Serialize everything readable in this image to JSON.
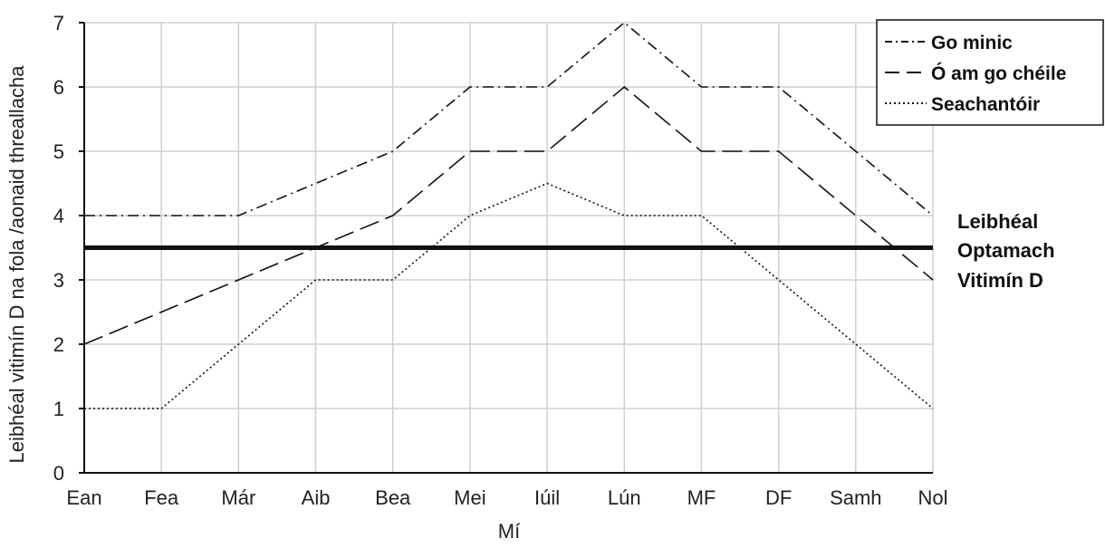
{
  "chart_data": {
    "type": "line",
    "title": "",
    "xlabel": "Mí",
    "ylabel": "Leibhéal vitimín D na fola /aonaid threallacha",
    "categories": [
      "Ean",
      "Fea",
      "Már",
      "Aib",
      "Bea",
      "Mei",
      "Iúil",
      "Lún",
      "MF",
      "DF",
      "Samh",
      "Nol"
    ],
    "ylim": [
      0,
      7
    ],
    "yticks": [
      "0",
      "1",
      "2",
      "3",
      "4",
      "5",
      "6",
      "7"
    ],
    "grid": true,
    "legend_position": "top-right",
    "series": [
      {
        "name": "Go minic",
        "style": "dash-dot",
        "color": "#111111",
        "values": [
          4,
          4,
          4,
          4.5,
          5,
          6,
          6,
          7,
          6,
          6,
          5,
          4
        ]
      },
      {
        "name": "Ó am go chéile",
        "style": "dashed",
        "color": "#111111",
        "values": [
          2,
          2.5,
          3,
          3.5,
          4,
          5,
          5,
          6,
          5,
          5,
          4,
          3
        ]
      },
      {
        "name": "Seachantóir",
        "style": "dotted",
        "color": "#111111",
        "values": [
          1,
          1,
          2,
          3,
          3,
          4,
          4.5,
          4,
          4,
          3,
          2,
          1
        ]
      }
    ],
    "reference_line": {
      "value": 3.5,
      "label_lines": [
        "Leibhéal",
        "Optamach",
        "Vitimín D"
      ]
    }
  }
}
